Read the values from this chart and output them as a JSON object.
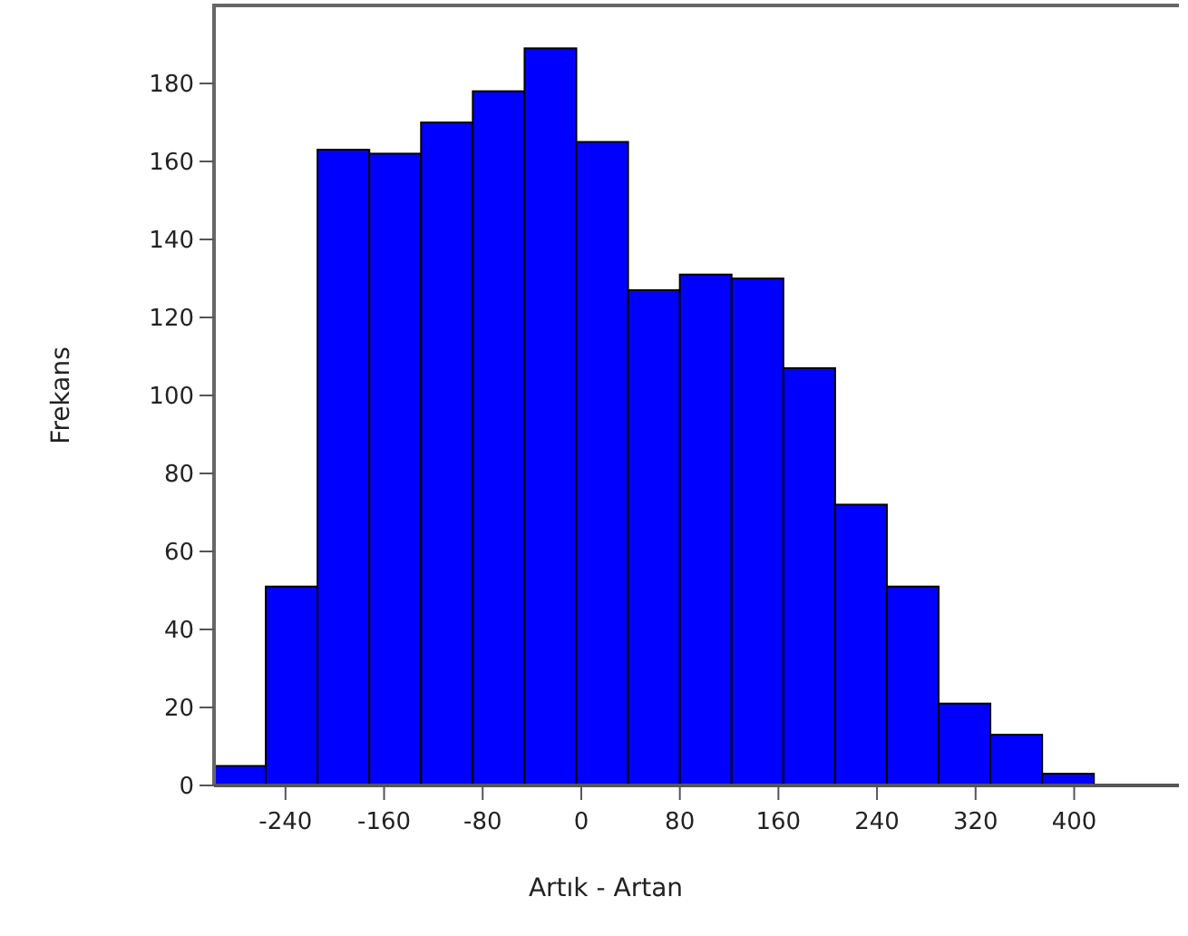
{
  "chart_data": {
    "type": "histogram",
    "xlabel": "Artık - Artan",
    "ylabel": "Frekans",
    "bins": [
      -298,
      -256,
      -214,
      -172,
      -130,
      -88,
      -46,
      -4,
      38,
      80,
      122,
      164,
      206,
      248,
      290,
      332,
      374,
      416
    ],
    "values": [
      5,
      51,
      163,
      162,
      170,
      178,
      189,
      165,
      127,
      131,
      130,
      107,
      72,
      51,
      21,
      13,
      3
    ],
    "color": "#0000ff",
    "xlim": [
      -298,
      485
    ],
    "xticks": [
      -240,
      -160,
      -80,
      0,
      80,
      160,
      240,
      320,
      400
    ],
    "ylim": [
      0,
      200
    ],
    "yticks": [
      0,
      20,
      40,
      60,
      80,
      100,
      120,
      140,
      160,
      180
    ],
    "grid": false
  }
}
